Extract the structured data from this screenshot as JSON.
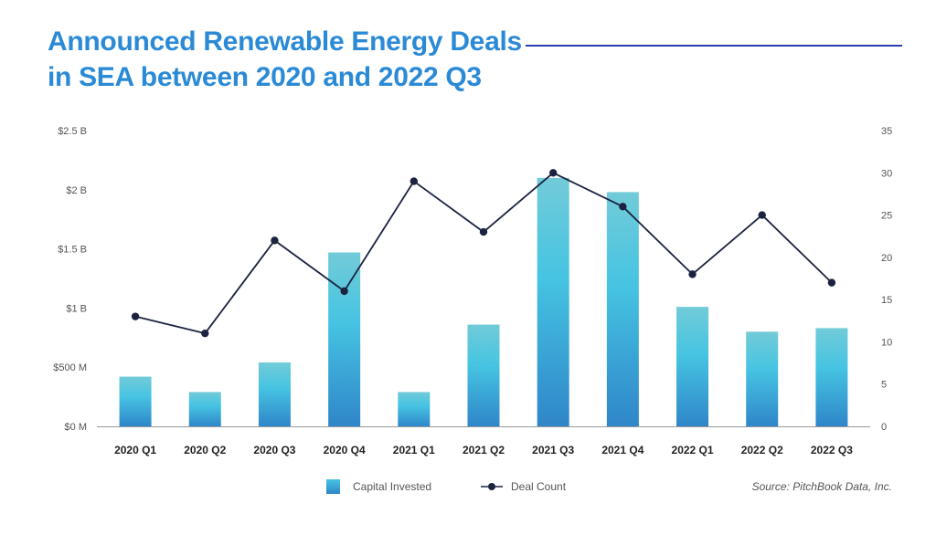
{
  "header": {
    "title_line1": "Announced Renewable Energy Deals",
    "title_line2": "in SEA between 2020 and 2022 Q3"
  },
  "footer": {
    "source": "Source: PitchBook Data, Inc."
  },
  "colors": {
    "title": "#2b8ad6",
    "title_rule": "#2a3fae",
    "bar_top": "#72cbd8",
    "bar_mid": "#46c4e2",
    "bar_bottom": "#2f86c9",
    "line": "#1c2340",
    "axis": "#999999"
  },
  "chart_data": {
    "type": "bar",
    "title": "Announced Renewable Energy Deals in SEA between 2020 and 2022 Q3",
    "xlabel": "",
    "ylabel": "Capital Invested",
    "y2label": "Deal Count",
    "categories": [
      "2020 Q1",
      "2020 Q2",
      "2020 Q3",
      "2020 Q4",
      "2021 Q1",
      "2021 Q2",
      "2021 Q3",
      "2021 Q4",
      "2022 Q1",
      "2022 Q2",
      "2022 Q3"
    ],
    "series": [
      {
        "name": "Capital Invested",
        "type": "bar",
        "axis": "left",
        "unit": "USD billions",
        "values": [
          0.42,
          0.29,
          0.54,
          1.47,
          0.29,
          0.86,
          2.1,
          1.98,
          1.01,
          0.8,
          0.83
        ]
      },
      {
        "name": "Deal Count",
        "type": "line",
        "axis": "right",
        "values": [
          13,
          11,
          22,
          16,
          29,
          23,
          30,
          26,
          18,
          25,
          17
        ]
      }
    ],
    "ylim": [
      0,
      2.5
    ],
    "y2lim": [
      0,
      35
    ],
    "yticks": [
      0,
      0.5,
      1,
      1.5,
      2,
      2.5
    ],
    "ytick_labels": [
      "$0 M",
      "$500 M",
      "$1 B",
      "$1.5 B",
      "$2 B",
      "$2.5 B"
    ],
    "y2ticks": [
      0,
      5,
      10,
      15,
      20,
      25,
      30,
      35
    ],
    "y2tick_labels": [
      "0",
      "5",
      "10",
      "15",
      "20",
      "25",
      "30",
      "35"
    ],
    "grid": false,
    "legend": {
      "position": "bottom-center",
      "entries": [
        "Capital Invested",
        "Deal Count"
      ]
    }
  }
}
